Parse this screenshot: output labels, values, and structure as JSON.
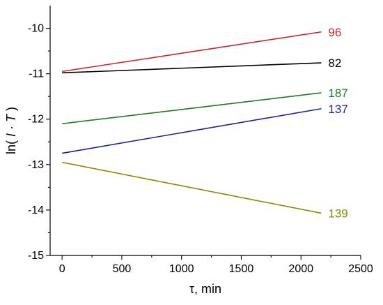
{
  "chart_data": {
    "type": "line",
    "title": "",
    "xlabel": "τ, min",
    "ylabel_parts": {
      "before": "ln(",
      "i": "I",
      "middle": "·",
      "t": "T",
      "after": ")"
    },
    "xlim": [
      -100,
      2500
    ],
    "ylim": [
      -15,
      -9.5
    ],
    "x_ticks": [
      0,
      500,
      1000,
      1500,
      2000,
      2500
    ],
    "x_tick_labels": [
      "0",
      "500",
      "1000",
      "1500",
      "2000",
      "2500"
    ],
    "y_ticks": [
      -10,
      -11,
      -12,
      -13,
      -14,
      -15
    ],
    "y_tick_labels": [
      "-10",
      "-11",
      "-12",
      "-13",
      "-14",
      "-15"
    ],
    "grid": false,
    "series": [
      {
        "name": "96",
        "color": "#c62828",
        "x": [
          0,
          2170
        ],
        "y": [
          -10.95,
          -10.08
        ]
      },
      {
        "name": "82",
        "color": "#000000",
        "x": [
          0,
          2170
        ],
        "y": [
          -10.98,
          -10.76
        ]
      },
      {
        "name": "187",
        "color": "#1f7a1f",
        "x": [
          0,
          2170
        ],
        "y": [
          -12.1,
          -11.42
        ]
      },
      {
        "name": "137",
        "color": "#1f1f9a",
        "x": [
          0,
          2170
        ],
        "y": [
          -12.75,
          -11.77
        ]
      },
      {
        "name": "139",
        "color": "#8a8a00",
        "x": [
          0,
          2170
        ],
        "y": [
          -12.95,
          -14.07
        ]
      }
    ]
  }
}
